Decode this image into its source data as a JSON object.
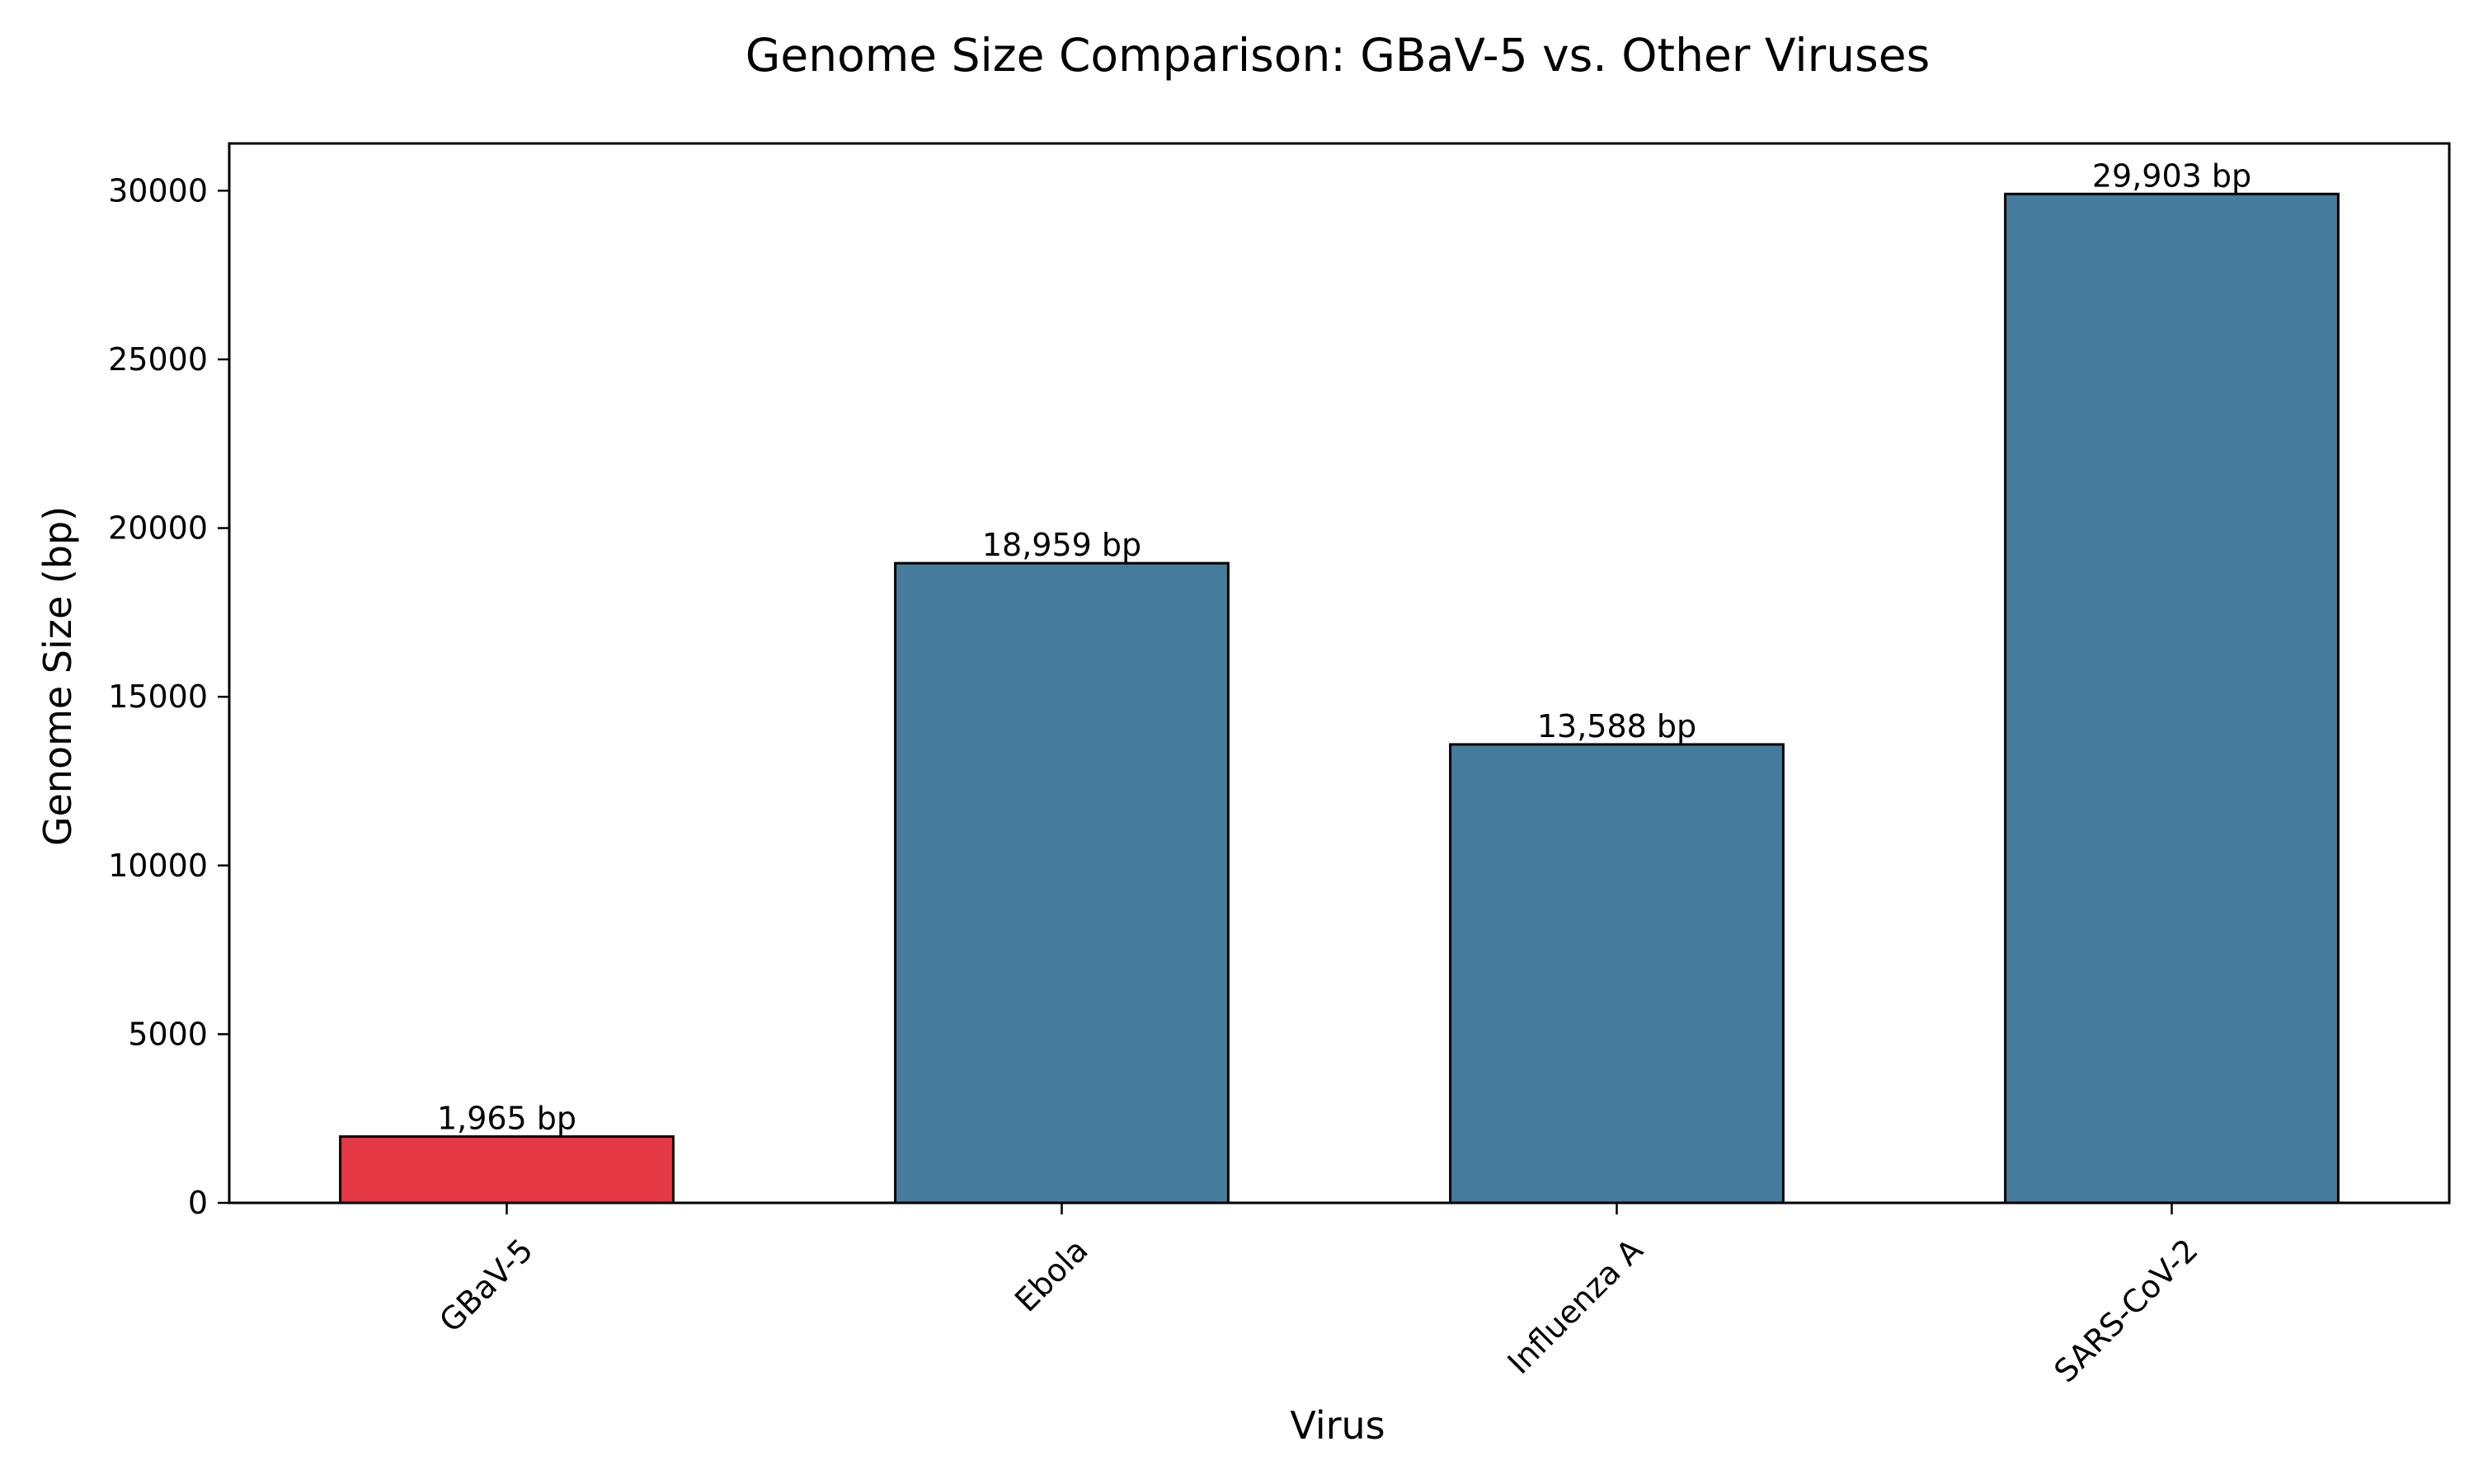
{
  "chart_data": {
    "type": "bar",
    "title": "Genome Size Comparison: GBaV-5 vs. Other Viruses",
    "xlabel": "Virus",
    "ylabel": "Genome Size (bp)",
    "categories": [
      "GBaV-5",
      "Ebola",
      "Influenza A",
      "SARS-CoV-2"
    ],
    "values": [
      1965,
      18959,
      13588,
      29903
    ],
    "value_labels": [
      "1,965 bp",
      "18,959 bp",
      "13,588 bp",
      "29,903 bp"
    ],
    "bar_colors": [
      "#e63946",
      "#457b9d",
      "#457b9d",
      "#457b9d"
    ],
    "edge_color": "#000000",
    "ylim": [
      0,
      31400
    ],
    "yticks": [
      0,
      5000,
      10000,
      15000,
      20000,
      25000,
      30000
    ],
    "ytick_labels": [
      "0",
      "5000",
      "10000",
      "15000",
      "20000",
      "25000",
      "30000"
    ],
    "grid": false,
    "legend": "none"
  }
}
